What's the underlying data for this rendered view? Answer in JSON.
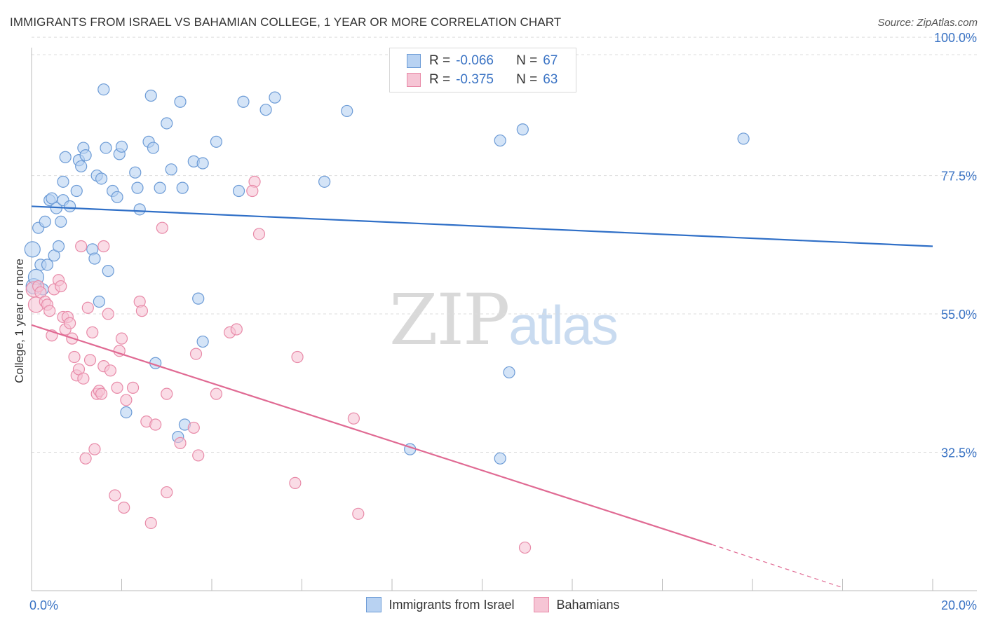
{
  "title": "IMMIGRANTS FROM ISRAEL VS BAHAMIAN COLLEGE, 1 YEAR OR MORE CORRELATION CHART",
  "source": "Source: ZipAtlas.com",
  "legend": {
    "r_label": "R =",
    "n_label": "N =",
    "rows": [
      {
        "r": "-0.066",
        "n": "67"
      },
      {
        "r": "-0.375",
        "n": "63"
      }
    ]
  },
  "watermark": {
    "zip": "ZIP",
    "atlas": "atlas"
  },
  "colors": {
    "israel_fill": "#b8d2f2",
    "israel_stroke": "#6c9bd6",
    "israel_line": "#2f6fc7",
    "bahamas_fill": "#f6c5d5",
    "bahamas_stroke": "#e88aa8",
    "bahamas_line": "#e06a93",
    "tick_label": "#3a73c4",
    "grid": "#dddddd"
  },
  "chart_data": {
    "type": "scatter",
    "title": "IMMIGRANTS FROM ISRAEL VS BAHAMIAN COLLEGE, 1 YEAR OR MORE CORRELATION CHART",
    "xlabel": "",
    "ylabel": "College, 1 year or more",
    "xlim": [
      0,
      20
    ],
    "ylim": [
      10,
      104
    ],
    "x_tick_labels": [
      {
        "value": 0,
        "label": "0.0%"
      },
      {
        "value": 20,
        "label": "20.0%"
      }
    ],
    "y_tick_labels": [
      {
        "value": 100,
        "label": "100.0%"
      },
      {
        "value": 77.5,
        "label": "77.5%"
      },
      {
        "value": 55,
        "label": "55.0%"
      },
      {
        "value": 32.5,
        "label": "32.5%"
      }
    ],
    "grid": true,
    "legend_position": "top-center",
    "series": [
      {
        "name": "Immigrants from Israel",
        "r": -0.066,
        "n": 67,
        "trend": {
          "x1": 0,
          "y1": 72.5,
          "x2": 20,
          "y2": 66.0
        },
        "points": [
          [
            0.02,
            65.5
          ],
          [
            0.05,
            59.5
          ],
          [
            0.15,
            69.0
          ],
          [
            0.2,
            63.0
          ],
          [
            0.3,
            70.0
          ],
          [
            0.35,
            63.0
          ],
          [
            0.4,
            73.5
          ],
          [
            0.45,
            73.8
          ],
          [
            0.5,
            64.5
          ],
          [
            0.55,
            72.2
          ],
          [
            0.6,
            66.0
          ],
          [
            0.65,
            70.0
          ],
          [
            0.7,
            73.5
          ],
          [
            0.7,
            76.5
          ],
          [
            0.75,
            80.5
          ],
          [
            0.85,
            72.5
          ],
          [
            1.0,
            75.0
          ],
          [
            1.05,
            80.0
          ],
          [
            1.1,
            79.0
          ],
          [
            1.15,
            82.0
          ],
          [
            1.2,
            80.8
          ],
          [
            1.35,
            65.5
          ],
          [
            1.4,
            64.0
          ],
          [
            1.45,
            77.5
          ],
          [
            1.5,
            57.0
          ],
          [
            1.55,
            77.0
          ],
          [
            1.6,
            91.5
          ],
          [
            1.65,
            82.0
          ],
          [
            1.7,
            62.0
          ],
          [
            1.8,
            75.0
          ],
          [
            1.9,
            74.0
          ],
          [
            1.95,
            81.0
          ],
          [
            2.0,
            82.2
          ],
          [
            2.1,
            39.0
          ],
          [
            2.3,
            78.0
          ],
          [
            2.35,
            75.5
          ],
          [
            2.4,
            72.0
          ],
          [
            2.6,
            83.0
          ],
          [
            2.65,
            90.5
          ],
          [
            2.7,
            82.0
          ],
          [
            2.75,
            47.0
          ],
          [
            2.85,
            75.5
          ],
          [
            3.0,
            86.0
          ],
          [
            3.1,
            78.5
          ],
          [
            3.25,
            35.0
          ],
          [
            3.3,
            89.5
          ],
          [
            3.35,
            75.5
          ],
          [
            3.4,
            37.0
          ],
          [
            3.6,
            79.8
          ],
          [
            3.7,
            57.5
          ],
          [
            3.8,
            79.5
          ],
          [
            3.8,
            50.5
          ],
          [
            4.1,
            83.0
          ],
          [
            4.6,
            75.0
          ],
          [
            4.7,
            89.5
          ],
          [
            5.2,
            88.2
          ],
          [
            5.4,
            90.2
          ],
          [
            6.5,
            76.5
          ],
          [
            7.0,
            88.0
          ],
          [
            8.4,
            33.0
          ],
          [
            10.4,
            31.5
          ],
          [
            10.6,
            45.5
          ],
          [
            10.4,
            83.2
          ],
          [
            10.9,
            85.0
          ],
          [
            15.8,
            83.5
          ],
          [
            0.1,
            61.0
          ],
          [
            0.25,
            59.0
          ]
        ]
      },
      {
        "name": "Bahamians",
        "r": -0.375,
        "n": 63,
        "trend": {
          "x1": 0,
          "y1": 53.2,
          "x2": 15.1,
          "y2": 17.5
        },
        "trend_dashed": {
          "x1": 15.1,
          "y1": 17.5,
          "x2": 18.0,
          "y2": 10.5
        },
        "points": [
          [
            0.05,
            59.0
          ],
          [
            0.1,
            56.5
          ],
          [
            0.15,
            59.5
          ],
          [
            0.2,
            58.5
          ],
          [
            0.3,
            57.0
          ],
          [
            0.35,
            56.5
          ],
          [
            0.4,
            55.5
          ],
          [
            0.45,
            51.5
          ],
          [
            0.5,
            59.0
          ],
          [
            0.6,
            60.5
          ],
          [
            0.65,
            59.5
          ],
          [
            0.7,
            54.5
          ],
          [
            0.75,
            52.5
          ],
          [
            0.8,
            54.5
          ],
          [
            0.85,
            53.5
          ],
          [
            0.9,
            51.0
          ],
          [
            0.95,
            48.0
          ],
          [
            1.0,
            45.0
          ],
          [
            1.05,
            46.0
          ],
          [
            1.1,
            66.0
          ],
          [
            1.15,
            44.5
          ],
          [
            1.2,
            31.5
          ],
          [
            1.25,
            56.0
          ],
          [
            1.3,
            47.5
          ],
          [
            1.35,
            52.0
          ],
          [
            1.4,
            33.0
          ],
          [
            1.45,
            42.0
          ],
          [
            1.5,
            42.5
          ],
          [
            1.55,
            42.0
          ],
          [
            1.6,
            66.0
          ],
          [
            1.6,
            46.5
          ],
          [
            1.7,
            55.0
          ],
          [
            1.75,
            45.8
          ],
          [
            1.85,
            25.5
          ],
          [
            1.9,
            43.0
          ],
          [
            1.95,
            49.0
          ],
          [
            2.0,
            51.0
          ],
          [
            2.05,
            23.5
          ],
          [
            2.1,
            41.0
          ],
          [
            2.25,
            43.0
          ],
          [
            2.4,
            57.0
          ],
          [
            2.45,
            55.5
          ],
          [
            2.55,
            37.5
          ],
          [
            2.65,
            21.0
          ],
          [
            2.75,
            37.0
          ],
          [
            2.9,
            69.0
          ],
          [
            3.0,
            42.0
          ],
          [
            3.0,
            26.0
          ],
          [
            3.3,
            34.0
          ],
          [
            3.6,
            36.5
          ],
          [
            3.65,
            48.5
          ],
          [
            3.7,
            32.0
          ],
          [
            4.1,
            42.0
          ],
          [
            4.4,
            52.0
          ],
          [
            4.55,
            52.5
          ],
          [
            4.95,
            76.5
          ],
          [
            4.9,
            75.0
          ],
          [
            5.05,
            68.0
          ],
          [
            5.9,
            48.0
          ],
          [
            5.85,
            27.5
          ],
          [
            7.15,
            38.0
          ],
          [
            7.25,
            22.5
          ],
          [
            10.95,
            17.0
          ]
        ]
      }
    ]
  },
  "bottom_legend": [
    "Immigrants from Israel",
    "Bahamians"
  ]
}
